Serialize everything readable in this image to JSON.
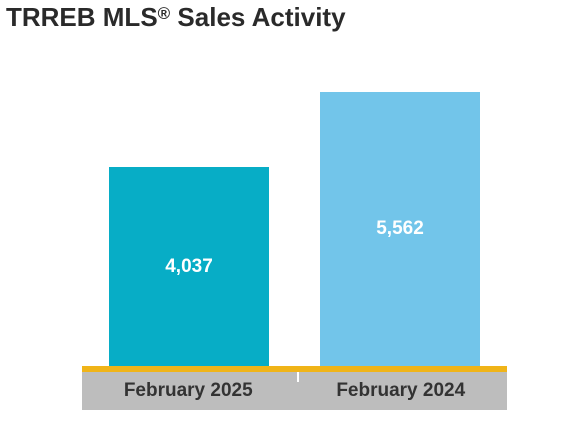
{
  "title": {
    "main": "TRREB MLS",
    "reg": "®",
    "rest": " Sales Activity"
  },
  "colors": {
    "axis": "#f0b418",
    "label_band": "#bdbdbd",
    "title": "#2a2a2a"
  },
  "chart_data": {
    "type": "bar",
    "title": "TRREB MLS® Sales Activity",
    "categories": [
      "February 2025",
      "February 2024"
    ],
    "values": [
      4037,
      5562
    ],
    "value_labels": [
      "4,037",
      "5,562"
    ],
    "bar_colors": [
      "#07adc6",
      "#72c5ea"
    ],
    "xlabel": "",
    "ylabel": "",
    "ylim": [
      0,
      6000
    ],
    "grid": false,
    "legend": "none"
  }
}
